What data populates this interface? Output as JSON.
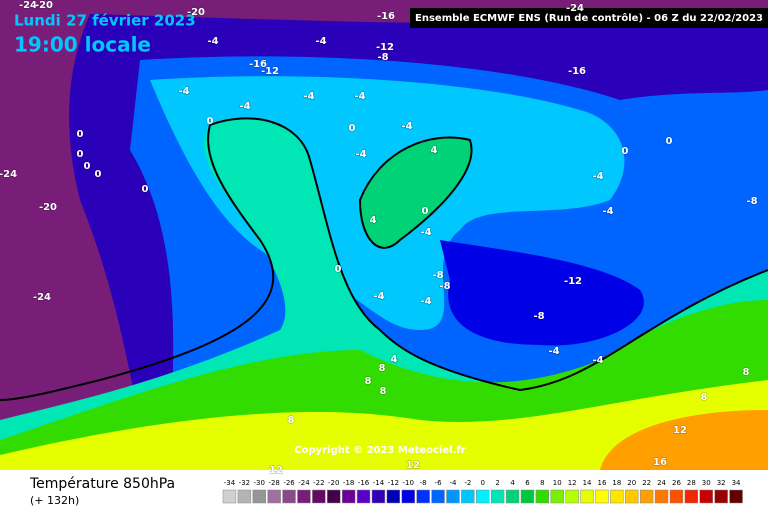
{
  "header": {
    "date": "Lundi 27 février 2023",
    "time": "19:00 locale",
    "run": "Ensemble ECMWF ENS  (Run de contrôle)  - 06 Z du 22/02/2023"
  },
  "copyright": "Copyright © 2023 Meteociel.fr",
  "footer": {
    "title": "Température 850hPa",
    "lead": "(+ 132h)"
  },
  "legend": {
    "ticks": [
      -34,
      -32,
      -30,
      -28,
      -26,
      -24,
      -22,
      -20,
      -18,
      -16,
      -14,
      -12,
      -10,
      -8,
      -6,
      -4,
      -2,
      0,
      2,
      4,
      6,
      8,
      10,
      12,
      14,
      16,
      18,
      20,
      22,
      24,
      26,
      28,
      30,
      32,
      34
    ],
    "colors": [
      "#d0d0d0",
      "#b4b4b4",
      "#969696",
      "#a070a0",
      "#8a4a8a",
      "#781e78",
      "#640a64",
      "#460046",
      "#6a0096",
      "#5a00c8",
      "#3200b4",
      "#0000b4",
      "#0000e6",
      "#0032ff",
      "#0064ff",
      "#0096ff",
      "#00c8ff",
      "#00f0ff",
      "#00e6b4",
      "#00d278",
      "#00c83c",
      "#32dc00",
      "#78f000",
      "#b4ff00",
      "#e6ff00",
      "#ffff00",
      "#ffe600",
      "#ffc800",
      "#ffa000",
      "#ff7800",
      "#ff5000",
      "#f02800",
      "#c80000",
      "#960000",
      "#640000"
    ]
  },
  "map_labels": [
    -24,
    -20,
    -20,
    -16,
    -24,
    -4,
    -4,
    -12,
    -8,
    -16,
    -12,
    -16,
    -4,
    -4,
    -4,
    -4,
    0,
    0,
    -4,
    0,
    0,
    0,
    0,
    -4,
    4,
    0,
    0,
    -4,
    -24,
    0,
    -20,
    -8,
    -4,
    0,
    4,
    -4,
    0,
    -8,
    -12,
    -8,
    -4,
    -4,
    -24,
    -8,
    -4,
    4,
    -4,
    8,
    8,
    8,
    8,
    8,
    12,
    8,
    12,
    12,
    16
  ]
}
